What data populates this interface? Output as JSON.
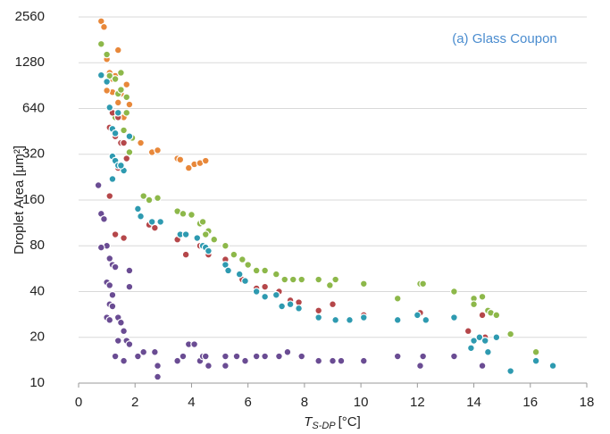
{
  "chart_data": {
    "type": "scatter",
    "annotation": "(a) Glass Coupon",
    "y_label": "Droplet Area [μm²]",
    "x_label": {
      "symbol": "T",
      "subscript": "S-DP",
      "unit": "[°C]"
    },
    "xlim": [
      0,
      18
    ],
    "xticks": [
      0,
      2,
      4,
      6,
      8,
      10,
      12,
      14,
      16,
      18
    ],
    "ylim": [
      10,
      2560
    ],
    "yticks": [
      10,
      20,
      40,
      80,
      160,
      320,
      640,
      1280,
      2560
    ],
    "yscale": "log",
    "grid": true,
    "series": [
      {
        "color": "#e8883a",
        "x": [
          0.8,
          0.9,
          1.0,
          1.1,
          1.3,
          1.4,
          1.2,
          1.5,
          1.4,
          1.7,
          1.8,
          1.6,
          2.2,
          2.6,
          2.8,
          3.5,
          3.6,
          3.9,
          4.1,
          4.3,
          4.5,
          1.2,
          1.0
        ],
        "values": [
          2400,
          2200,
          1350,
          1100,
          1050,
          1550,
          820,
          800,
          700,
          920,
          680,
          560,
          380,
          330,
          340,
          300,
          295,
          260,
          275,
          280,
          290,
          1000,
          840
        ]
      },
      {
        "color": "#8db84a",
        "x": [
          0.8,
          1.0,
          1.1,
          1.3,
          1.4,
          1.5,
          1.5,
          1.7,
          1.7,
          1.9,
          1.8,
          1.6,
          1.3,
          2.3,
          2.5,
          2.8,
          3.5,
          3.7,
          4.0,
          4.3,
          4.4,
          4.6,
          4.5,
          4.8,
          5.2,
          5.5,
          5.8,
          6.0,
          6.3,
          6.6,
          7.0,
          7.3,
          7.6,
          7.9,
          8.5,
          8.9,
          9.1,
          10.1,
          11.3,
          12.1,
          12.2,
          13.3,
          14.0,
          14.0,
          14.3,
          14.5,
          14.6,
          14.8,
          15.3,
          16.2
        ],
        "values": [
          1700,
          1450,
          1050,
          1000,
          800,
          1100,
          850,
          760,
          600,
          410,
          330,
          460,
          560,
          170,
          160,
          165,
          135,
          130,
          128,
          112,
          115,
          100,
          95,
          88,
          80,
          70,
          65,
          60,
          55,
          55,
          52,
          48,
          48,
          48,
          48,
          44,
          48,
          45,
          36,
          45,
          45,
          40,
          36,
          33,
          37,
          30,
          29,
          28,
          21,
          16
        ]
      },
      {
        "color": "#b5474a",
        "x": [
          1.2,
          1.4,
          1.1,
          1.3,
          1.5,
          1.6,
          1.7,
          1.4,
          1.1,
          1.3,
          1.6,
          2.5,
          2.7,
          3.5,
          3.8,
          4.3,
          4.6,
          5.2,
          5.8,
          6.3,
          6.6,
          7.1,
          7.5,
          7.8,
          8.5,
          9.0,
          10.1,
          12.1,
          13.3,
          13.8,
          14.4,
          14.3
        ],
        "values": [
          600,
          560,
          480,
          420,
          380,
          380,
          300,
          260,
          170,
          95,
          90,
          110,
          105,
          88,
          70,
          80,
          70,
          65,
          48,
          42,
          43,
          40,
          35,
          34,
          30,
          33,
          28,
          29,
          27,
          22,
          20,
          28
        ]
      },
      {
        "color": "#2e9ab0",
        "x": [
          0.8,
          1.0,
          1.1,
          1.2,
          1.3,
          1.4,
          1.2,
          1.3,
          1.4,
          1.6,
          1.8,
          1.2,
          1.5,
          2.1,
          2.2,
          2.6,
          2.9,
          3.6,
          3.8,
          4.2,
          4.4,
          4.5,
          4.6,
          5.2,
          5.3,
          5.7,
          5.9,
          6.3,
          6.6,
          7.0,
          7.2,
          7.5,
          7.8,
          8.5,
          9.1,
          9.6,
          10.1,
          11.3,
          12.0,
          12.3,
          13.3,
          13.9,
          14.0,
          14.2,
          14.4,
          14.5,
          14.8,
          15.3,
          16.2,
          16.8
        ],
        "values": [
          1060,
          960,
          650,
          470,
          440,
          600,
          310,
          290,
          270,
          250,
          420,
          220,
          270,
          140,
          125,
          115,
          115,
          95,
          95,
          90,
          80,
          78,
          74,
          60,
          55,
          52,
          47,
          40,
          37,
          38,
          32,
          33,
          31,
          27,
          26,
          26,
          27,
          26,
          28,
          26,
          27,
          17,
          19,
          20,
          19,
          16,
          20,
          12,
          14,
          13
        ]
      },
      {
        "color": "#6a4c93",
        "x": [
          0.7,
          0.8,
          0.9,
          1.0,
          0.8,
          1.1,
          1.2,
          1.3,
          1.0,
          1.1,
          1.2,
          1.1,
          1.2,
          1.0,
          1.1,
          1.4,
          1.5,
          1.6,
          1.4,
          1.7,
          1.8,
          1.3,
          1.6,
          1.8,
          1.8,
          2.1,
          2.3,
          2.7,
          2.8,
          2.8,
          3.5,
          3.7,
          3.9,
          4.1,
          4.3,
          4.4,
          4.5,
          4.6,
          5.2,
          5.2,
          5.6,
          5.9,
          6.3,
          6.6,
          7.1,
          7.4,
          7.9,
          8.5,
          9.0,
          9.3,
          10.1,
          11.3,
          12.1,
          12.2,
          13.3,
          14.3
        ],
        "values": [
          200,
          130,
          120,
          80,
          78,
          66,
          60,
          58,
          46,
          44,
          38,
          33,
          32,
          27,
          26,
          27,
          25,
          22,
          19,
          19,
          18,
          15,
          14,
          55,
          43,
          15,
          16,
          16,
          13,
          11,
          14,
          15,
          18,
          18,
          14,
          15,
          15,
          13,
          15,
          13,
          15,
          14,
          15,
          15,
          15,
          16,
          15,
          14,
          14,
          14,
          14,
          15,
          13,
          15,
          15,
          13
        ]
      }
    ]
  }
}
